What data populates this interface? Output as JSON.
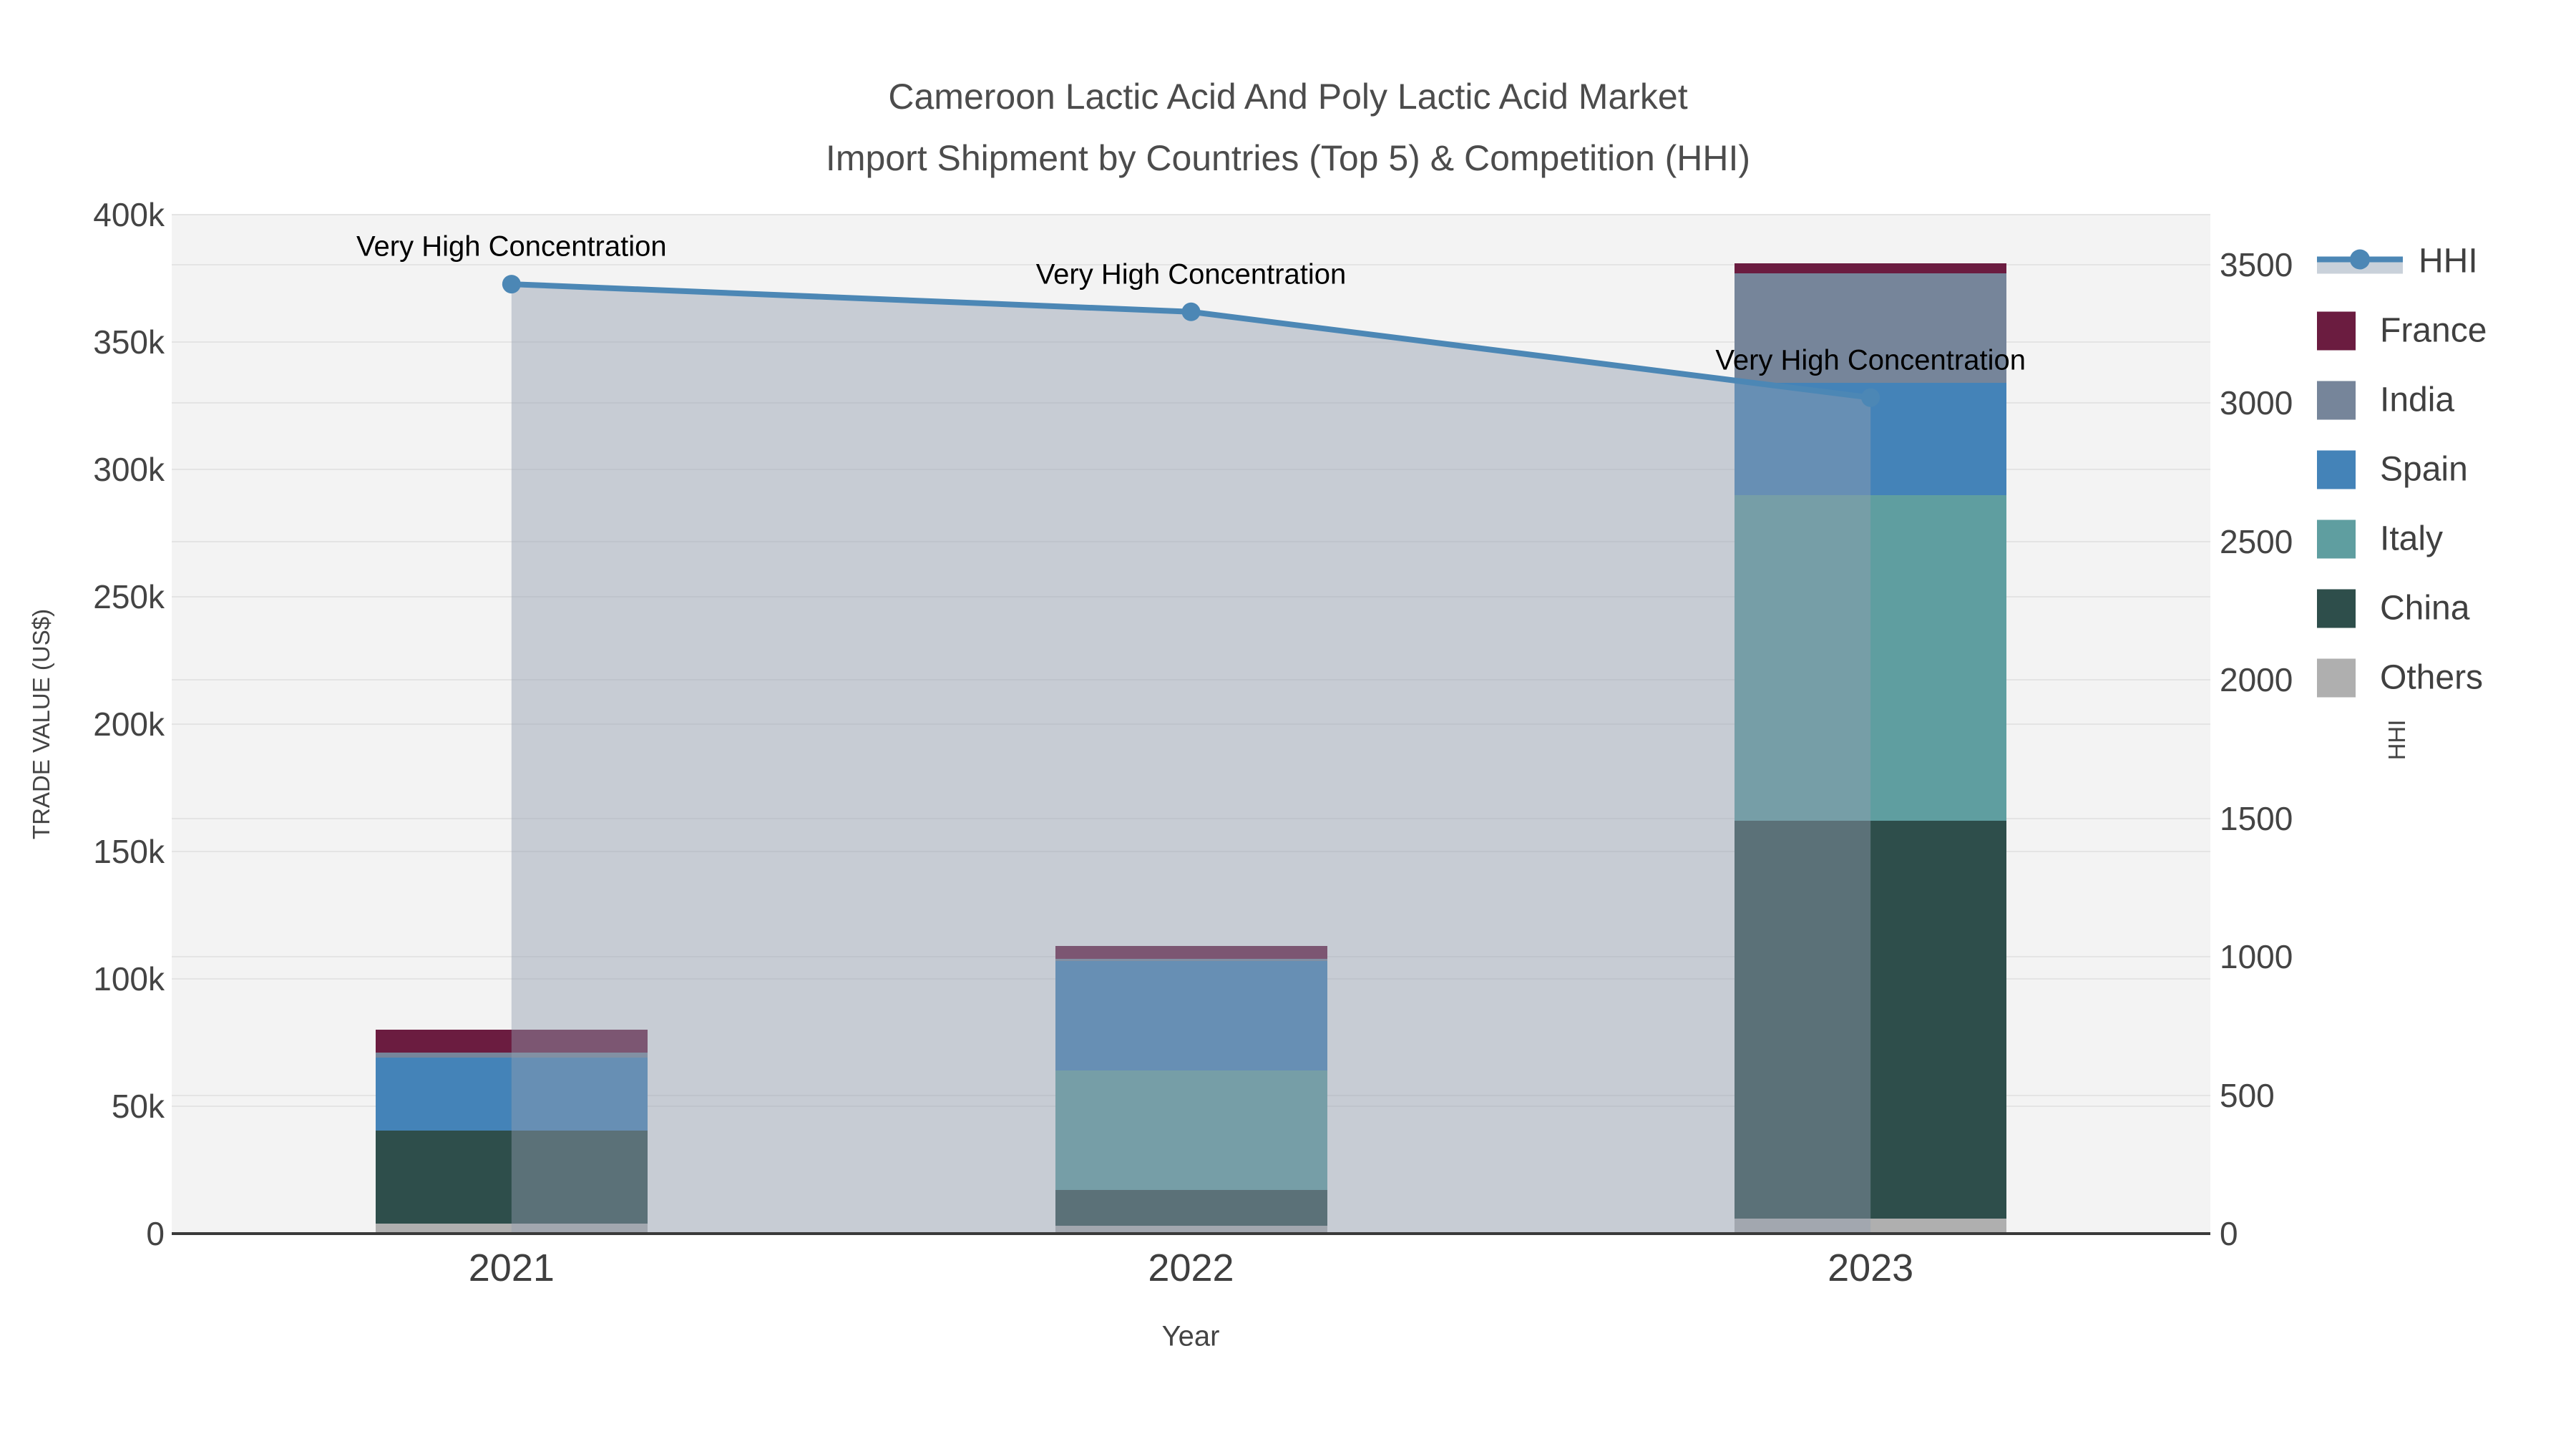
{
  "title": {
    "line1": "Cameroon Lactic Acid And Poly Lactic Acid Market",
    "line2": "Import Shipment by Countries (Top 5) & Competition (HHI)"
  },
  "axes": {
    "left": {
      "title": "TRADE VALUE (US$)",
      "tick_labels": [
        "0",
        "50k",
        "100k",
        "150k",
        "200k",
        "250k",
        "300k",
        "350k",
        "400k"
      ],
      "tick_values": [
        0,
        50000,
        100000,
        150000,
        200000,
        250000,
        300000,
        350000,
        400000
      ]
    },
    "right": {
      "title": "HHI",
      "tick_labels": [
        "0",
        "500",
        "1000",
        "1500",
        "2000",
        "2500",
        "3000",
        "3500"
      ],
      "tick_values": [
        0,
        500,
        1000,
        1500,
        2000,
        2500,
        3000,
        3500
      ]
    },
    "x": {
      "title": "Year",
      "categories": [
        "2021",
        "2022",
        "2023"
      ]
    }
  },
  "legend": {
    "items": [
      {
        "label": "HHI",
        "swatch": "line",
        "color": "#4C87B5",
        "fill_color": "#C9D1DA"
      },
      {
        "label": "France",
        "swatch": "square",
        "color": "#6B1C40"
      },
      {
        "label": "India",
        "swatch": "square",
        "color": "#76859A"
      },
      {
        "label": "Spain",
        "swatch": "square",
        "color": "#4483B8"
      },
      {
        "label": "Italy",
        "swatch": "square",
        "color": "#5F9EA0"
      },
      {
        "label": "China",
        "swatch": "square",
        "color": "#2E4E4B"
      },
      {
        "label": "Others",
        "swatch": "square",
        "color": "#AFAFAF"
      }
    ]
  },
  "chart_data": {
    "type": "combo-stacked-bar-line",
    "title": "Cameroon Lactic Acid And Poly Lactic Acid Market Import Shipment by Countries (Top 5) & Competition (HHI)",
    "xlabel": "Year",
    "ylabel": "TRADE VALUE (US$)",
    "y2label": "HHI",
    "categories": [
      "2021",
      "2022",
      "2023"
    ],
    "ylim": [
      0,
      400000
    ],
    "y2lim": [
      0,
      3680
    ],
    "grid": true,
    "legend_position": "right",
    "series": [
      {
        "name": "Others",
        "color": "#AFAFAF",
        "values": [
          4000,
          3000,
          6000
        ]
      },
      {
        "name": "China",
        "color": "#2E4E4B",
        "values": [
          36500,
          14000,
          156000
        ]
      },
      {
        "name": "Italy",
        "color": "#5F9EA0",
        "values": [
          0,
          47000,
          128000
        ]
      },
      {
        "name": "Spain",
        "color": "#4483B8",
        "values": [
          28500,
          43000,
          44000
        ]
      },
      {
        "name": "India",
        "color": "#76859A",
        "values": [
          2000,
          1000,
          43000
        ]
      },
      {
        "name": "France",
        "color": "#6B1C40",
        "values": [
          9000,
          4800,
          4000
        ]
      }
    ],
    "line_series": {
      "name": "HHI",
      "axis": "right",
      "values": [
        3430,
        3330,
        3020
      ],
      "color": "#4C87B5",
      "area_fill": "rgba(146,158,175,0.45)",
      "point_annotations": [
        "Very High Concentration",
        "Very High Concentration",
        "Very High Concentration"
      ]
    }
  }
}
